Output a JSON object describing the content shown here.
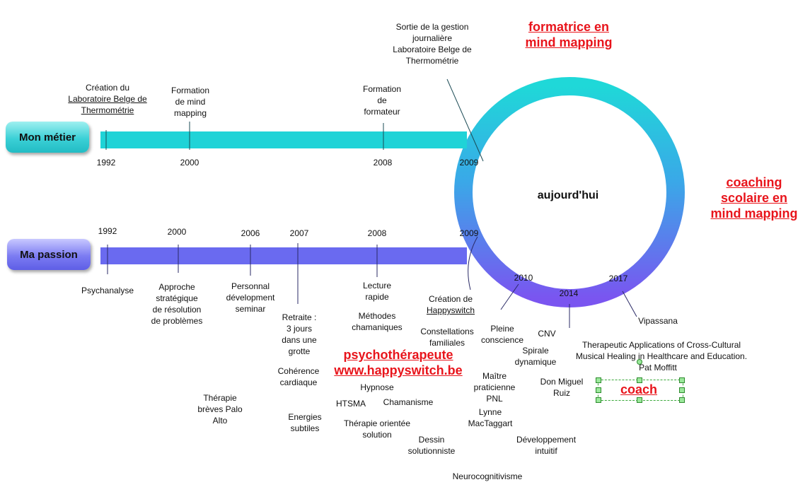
{
  "colors": {
    "metier": "#1fd3d7",
    "passion": "#6a6af0",
    "accent_red": "#e8141b"
  },
  "rows": {
    "metier_label": "Mon métier",
    "passion_label": "Ma passion"
  },
  "center_label": "aujourd'hui",
  "metier_years": [
    "1992",
    "2000",
    "2008",
    "2009"
  ],
  "metier_events": {
    "creation_l1": "Création du",
    "creation_l2": "Laboratoire Belge de",
    "creation_l3": "Thermométrie",
    "formation_mm": [
      "Formation",
      "de mind",
      "mapping"
    ],
    "formation_formateur": [
      "Formation",
      "de",
      "formateur"
    ],
    "sortie": [
      "Sortie de la gestion",
      "journalière",
      "Laboratoire Belge de",
      "Thermométrie"
    ]
  },
  "passion_years": [
    "1992",
    "2000",
    "2006",
    "2007",
    "2008",
    "2009",
    "2010",
    "2014",
    "2017"
  ],
  "passion_events": {
    "psychanalyse": "Psychanalyse",
    "approche": [
      "Approche",
      "stratégique",
      "de résolution",
      "de problèmes"
    ],
    "personnal": [
      "Personnal",
      "dévelopment",
      "seminar"
    ],
    "retraite": [
      "Retraite :",
      "3 jours",
      "dans une",
      "grotte"
    ],
    "coherence": [
      "Cohérence",
      "cardiaque"
    ],
    "energies": [
      "Energies",
      "subtiles"
    ],
    "therapie_breves": [
      "Thérapie",
      "brèves Palo",
      "Alto"
    ],
    "lecture": [
      "Lecture",
      "rapide"
    ],
    "methodes": [
      "Méthodes",
      "chamaniques"
    ],
    "creation_hs_l1": "Création de",
    "creation_hs_l2": "Happyswitch",
    "hypnose": "Hypnose",
    "htsma": "HTSMA",
    "chamanisme": "Chamanisme",
    "therapie_orientee": [
      "Thérapie orientée",
      "solution"
    ],
    "dessin": [
      "Dessin",
      "solutionniste"
    ],
    "neuro": "Neurocognitivisme",
    "constellations": [
      "Constellations",
      "familiales"
    ],
    "pleine": [
      "Pleine",
      "conscience"
    ],
    "cnv": "CNV",
    "spirale": [
      "Spirale",
      "dynamique"
    ],
    "maitre": [
      "Maître",
      "praticienne",
      "PNL"
    ],
    "lynne": [
      "Lynne",
      "MacTaggart"
    ],
    "don_miguel": [
      "Don Miguel",
      "Ruiz"
    ],
    "developpement": [
      "Développement",
      "intuitif"
    ],
    "vipassana": "Vipassana",
    "therapeutic": [
      "Therapeutic Applications of Cross-Cultural",
      "Musical Healing in Healthcare and Education."
    ],
    "pat": "Pat Moffitt"
  },
  "highlights": {
    "formatrice": [
      "formatrice en",
      "mind mapping"
    ],
    "coaching": [
      "coaching",
      "scolaire en",
      "mind mapping"
    ],
    "psychotherapeute": [
      "psychothérapeute",
      "www.happyswitch.be"
    ],
    "coach": "coach"
  }
}
